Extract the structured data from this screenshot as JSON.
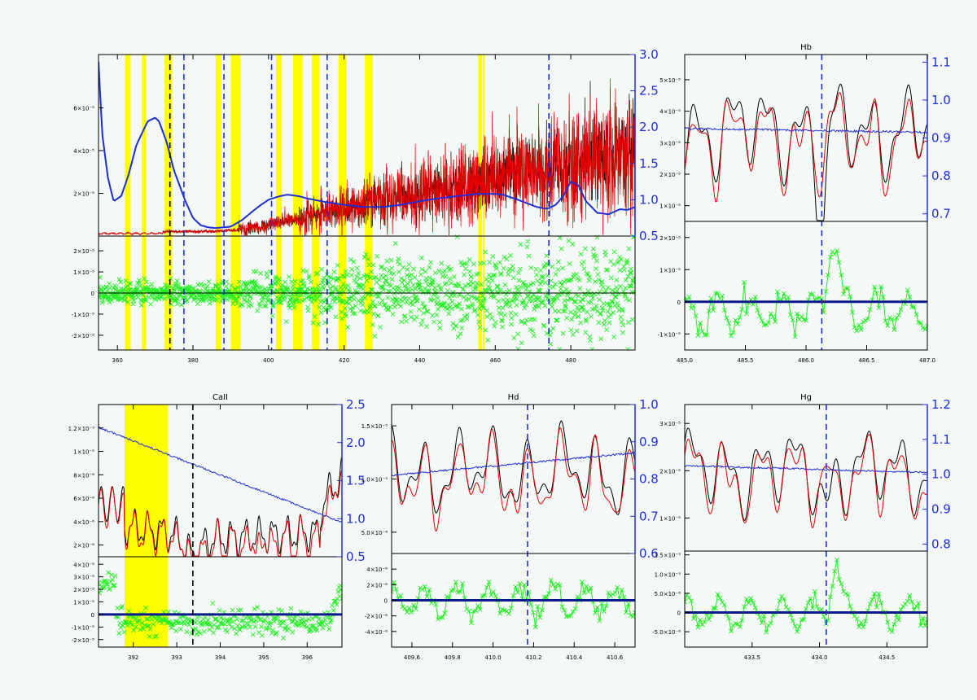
{
  "figure": {
    "background": "#f4f8f6"
  },
  "colors": {
    "observed": "#000000",
    "model": "#e00000",
    "continuum": "#1f2fd6",
    "residual": "#22ee22",
    "highlight": "#ffff00",
    "marker": "#1f2fd6",
    "zero_line": "#000000",
    "zero_line_bold": "#0a1a8c"
  },
  "chart_data": [
    {
      "id": "full",
      "type": "line",
      "title": "",
      "x_range": [
        355,
        497
      ],
      "x_ticks": [
        360,
        380,
        400,
        420,
        440,
        460,
        480
      ],
      "x_tick_labels": [
        "360",
        "380",
        "400",
        "420",
        "440",
        "460",
        "480"
      ],
      "top": {
        "y_range": [
          0,
          8.5e-05
        ],
        "y_ticks": [
          2e-05,
          4e-05,
          6e-05
        ],
        "y_tick_labels": [
          "2×10⁻⁵",
          "4×10⁻⁵",
          "6×10⁻⁵"
        ],
        "y2_range": [
          0.5,
          3.0
        ],
        "y2_ticks": [
          0.5,
          1.0,
          1.5,
          2.0,
          2.5,
          3.0
        ],
        "y2_tick_labels": [
          "0.5",
          "1.0",
          "1.5",
          "2.0",
          "2.5",
          "3.0"
        ]
      },
      "bottom": {
        "y_range": [
          -2.7e-05,
          2.7e-05
        ],
        "y_ticks": [
          -2e-05,
          -1e-05,
          0,
          1e-05,
          2e-05
        ],
        "y_tick_labels": [
          "-2×10⁻⁵",
          "-1×10⁻⁵",
          "0",
          "1×10⁻⁵",
          "2×10⁻⁵"
        ]
      },
      "highlight_bands": [
        [
          362,
          363.5
        ],
        [
          366.5,
          367.5
        ],
        [
          372.5,
          374.5
        ],
        [
          386,
          387.5
        ],
        [
          390,
          392.5
        ],
        [
          402,
          403.5
        ],
        [
          406.5,
          409
        ],
        [
          411.5,
          413.5
        ],
        [
          418.5,
          420.5
        ],
        [
          425.5,
          427.5
        ],
        [
          455.5,
          456.5
        ],
        [
          456.7,
          457.2
        ]
      ],
      "markers": [
        {
          "x": 373.9,
          "color": "#000000"
        },
        {
          "x": 377.6,
          "color": "#1f2fd6"
        },
        {
          "x": 388.2,
          "color": "#1f2fd6"
        },
        {
          "x": 400.8,
          "color": "#1f2fd6"
        },
        {
          "x": 415.5,
          "color": "#1f2fd6"
        },
        {
          "x": 474.2,
          "color": "#1f2fd6"
        }
      ],
      "continuum": {
        "x": [
          355,
          356,
          357.5,
          359,
          361,
          363,
          365,
          368,
          370,
          371,
          373,
          375,
          378,
          380,
          382,
          384,
          386,
          390,
          393,
          396,
          398,
          400,
          403,
          405,
          408,
          410,
          415,
          420,
          425,
          430,
          435,
          440,
          445,
          450,
          455,
          460,
          462,
          466,
          469,
          471,
          473,
          474,
          476,
          478,
          480,
          482,
          484,
          487,
          490,
          493,
          495,
          497
        ],
        "y": [
          2.9,
          1.9,
          1.3,
          0.98,
          1.05,
          1.35,
          1.75,
          2.08,
          2.13,
          2.08,
          1.8,
          1.4,
          0.98,
          0.75,
          0.65,
          0.62,
          0.61,
          0.63,
          0.72,
          0.85,
          0.93,
          1.0,
          1.05,
          1.07,
          1.05,
          1.02,
          0.97,
          0.93,
          0.9,
          0.9,
          0.93,
          0.98,
          1.02,
          1.05,
          1.08,
          1.08,
          1.07,
          1.0,
          0.94,
          0.9,
          0.88,
          0.88,
          0.93,
          1.05,
          1.25,
          1.2,
          0.98,
          0.82,
          0.8,
          0.87,
          0.86,
          0.9
        ]
      }
    },
    {
      "id": "hbeta",
      "type": "line",
      "title": "Hb",
      "x_range": [
        485.0,
        487.0
      ],
      "x_ticks": [
        485.0,
        485.5,
        486.0,
        486.5,
        487.0
      ],
      "x_tick_labels": [
        "485.0",
        "485.5",
        "486.0",
        "486.5",
        "487.0"
      ],
      "top": {
        "y_range": [
          5e-06,
          5.8e-05
        ],
        "y_ticks": [
          1e-05,
          2e-05,
          3e-05,
          4e-05,
          5e-05
        ],
        "y_tick_labels": [
          "1×10⁻⁵",
          "2×10⁻⁵",
          "3×10⁻⁵",
          "4×10⁻⁵",
          "5×10⁻⁵"
        ],
        "y2_range": [
          0.68,
          1.12
        ],
        "y2_ticks": [
          0.7,
          0.8,
          0.9,
          1.0,
          1.1
        ],
        "y2_tick_labels": [
          "0.7",
          "0.8",
          "0.9",
          "1.0",
          "1.1"
        ]
      },
      "bottom": {
        "y_range": [
          -1.5e-05,
          2.5e-05
        ],
        "y_ticks": [
          -1e-05,
          0,
          1e-05,
          2e-05
        ],
        "y_tick_labels": [
          "-1×10⁻⁵",
          "0",
          "1×10⁻⁵",
          "2×10⁻⁵"
        ]
      },
      "markers": [
        {
          "x": 486.13,
          "color": "#1f2fd6"
        }
      ],
      "continuum_line": {
        "y0": 0.925,
        "y1": 0.915
      }
    },
    {
      "id": "caii",
      "type": "line",
      "title": "CaII",
      "x_range": [
        391.2,
        396.8
      ],
      "x_ticks": [
        392,
        393,
        394,
        395,
        396
      ],
      "x_tick_labels": [
        "392",
        "393",
        "394",
        "395",
        "396"
      ],
      "top": {
        "y_range": [
          1e-06,
          1.4e-05
        ],
        "y_ticks": [
          2e-06,
          4e-06,
          6e-06,
          8e-06,
          1e-05,
          1.2e-05
        ],
        "y_tick_labels": [
          "2×10⁻⁶",
          "4×10⁻⁶",
          "6×10⁻⁶",
          "8×10⁻⁶",
          "1×10⁻⁵",
          "1.2×10⁻⁵"
        ],
        "y2_range": [
          0.5,
          2.5
        ],
        "y2_ticks": [
          0.5,
          1.0,
          1.5,
          2.0,
          2.5
        ],
        "y2_tick_labels": [
          "0.5",
          "1.0",
          "1.5",
          "2.0",
          "2.5"
        ]
      },
      "bottom": {
        "y_range": [
          -2.6e-05,
          4.6e-05
        ],
        "y_ticks": [
          -2e-05,
          -1e-05,
          0,
          1e-05,
          2e-05,
          3e-05,
          4e-05
        ],
        "y_tick_labels": [
          "-2×10⁻⁵",
          "-1×10⁻⁵",
          "0",
          "1×10⁻⁵",
          "2×10⁻⁵",
          "3×10⁻⁵",
          "4×10⁻⁵"
        ]
      },
      "highlight_bands": [
        [
          391.8,
          392.8
        ]
      ],
      "markers": [
        {
          "x": 393.37,
          "color": "#000000"
        },
        {
          "x": 396.85,
          "color": "#1f2fd6"
        }
      ],
      "continuum_line": {
        "y0": 2.2,
        "y1": 0.95
      }
    },
    {
      "id": "hdelta",
      "type": "line",
      "title": "Hd",
      "x_range": [
        409.5,
        410.7
      ],
      "x_ticks": [
        409.6,
        409.8,
        410.0,
        410.2,
        410.4,
        410.6
      ],
      "x_tick_labels": [
        "409.6",
        "409.8",
        "410.0",
        "410.2",
        "410.4",
        "410.6"
      ],
      "top": {
        "y_range": [
          3e-06,
          1.7e-05
        ],
        "y_ticks": [
          5e-06,
          1e-05,
          1.5e-05
        ],
        "y_tick_labels": [
          "5.0×10⁻⁶",
          "1.0×10⁻⁵",
          "1.5×10⁻⁵"
        ],
        "y2_range": [
          0.6,
          1.0
        ],
        "y2_ticks": [
          0.6,
          0.7,
          0.8,
          0.9,
          1.0
        ],
        "y2_tick_labels": [
          "0.6",
          "0.7",
          "0.8",
          "0.9",
          "1.0"
        ]
      },
      "bottom": {
        "y_range": [
          -6e-06,
          6e-06
        ],
        "y_ticks": [
          -4e-06,
          -2e-06,
          0,
          2e-06,
          4e-06
        ],
        "y_tick_labels": [
          "-4×10⁻⁶",
          "-2×10⁻⁶",
          "0",
          "2×10⁻⁶",
          "4×10⁻⁶"
        ]
      },
      "markers": [
        {
          "x": 410.17,
          "color": "#1f2fd6"
        }
      ],
      "continuum_line": {
        "y0": 0.81,
        "y1": 0.87
      }
    },
    {
      "id": "hgamma",
      "type": "line",
      "title": "Hg",
      "x_range": [
        433.0,
        434.8
      ],
      "x_ticks": [
        433.5,
        434.0,
        434.5
      ],
      "x_tick_labels": [
        "433.5",
        "434.0",
        "434.5"
      ],
      "top": {
        "y_range": [
          3e-06,
          3.4e-05
        ],
        "y_ticks": [
          1e-05,
          2e-05,
          3e-05
        ],
        "y_tick_labels": [
          "1×10⁻⁵",
          "2×10⁻⁵",
          "3×10⁻⁵"
        ],
        "y2_range": [
          0.78,
          1.2
        ],
        "y2_ticks": [
          0.8,
          0.9,
          1.0,
          1.1,
          1.2
        ],
        "y2_tick_labels": [
          "0.8",
          "0.9",
          "1.0",
          "1.1",
          "1.2"
        ]
      },
      "bottom": {
        "y_range": [
          -9e-06,
          1.6e-05
        ],
        "y_ticks": [
          -5e-06,
          0,
          5e-06,
          1e-05,
          1.5e-05
        ],
        "y_tick_labels": [
          "-5.0×10⁻⁶",
          "0",
          "5.0×10⁻⁶",
          "1.0×10⁻⁵",
          "1.5×10⁻⁵"
        ]
      },
      "markers": [
        {
          "x": 434.05,
          "color": "#1f2fd6"
        }
      ],
      "continuum_line": {
        "y0": 1.025,
        "y1": 1.005
      }
    }
  ]
}
